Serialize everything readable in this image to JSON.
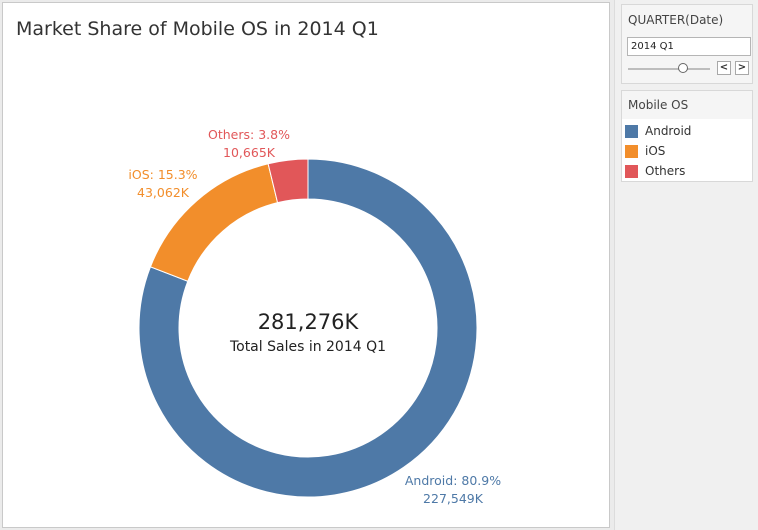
{
  "chart_data": {
    "type": "pie",
    "title": "Market Share of Mobile OS in 2014 Q1",
    "center_value": "281,276K",
    "center_label": "Total Sales in 2014 Q1",
    "slices": [
      {
        "name": "Android",
        "value": 227549,
        "percent": 80.9,
        "label_pct": "Android: 80.9%",
        "label_value": "227,549K",
        "color": "#4e79a7"
      },
      {
        "name": "iOS",
        "value": 43062,
        "percent": 15.3,
        "label_pct": "iOS: 15.3%",
        "label_value": "43,062K",
        "color": "#f28e2b"
      },
      {
        "name": "Others",
        "value": 10665,
        "percent": 3.8,
        "label_pct": "Others: 3.8%",
        "label_value": "10,665K",
        "color": "#e15759"
      }
    ]
  },
  "filter": {
    "title": "QUARTER(Date)",
    "value": "2014 Q1",
    "prev_icon": "chevron-left-icon",
    "next_icon": "chevron-right-icon",
    "prev_glyph": "<",
    "next_glyph": ">"
  },
  "legend": {
    "title": "Mobile OS",
    "items": [
      {
        "label": "Android",
        "color": "#4e79a7"
      },
      {
        "label": "iOS",
        "color": "#f28e2b"
      },
      {
        "label": "Others",
        "color": "#e15759"
      }
    ]
  }
}
